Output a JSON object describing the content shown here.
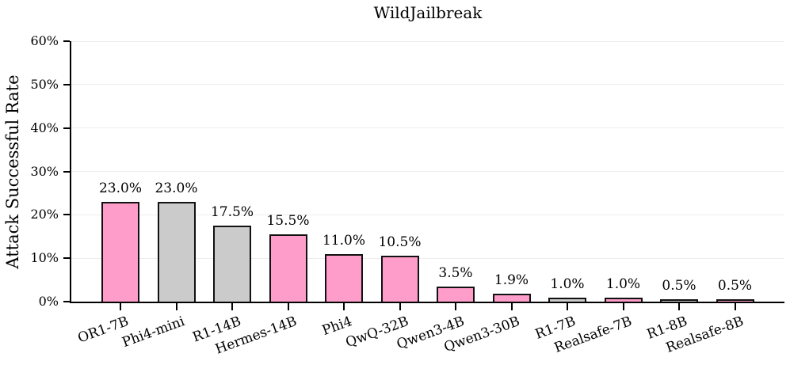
{
  "chart_data": {
    "type": "bar",
    "title": "WildJailbreak",
    "xlabel": "",
    "ylabel": "Attack Successful Rate",
    "ylim": [
      0,
      60
    ],
    "ytick_step": 10,
    "ytick_labels": [
      "0%",
      "10%",
      "20%",
      "30%",
      "40%",
      "50%",
      "60%"
    ],
    "grid": true,
    "legend": "none",
    "categories": [
      "OR1-7B",
      "Phi4-mini",
      "R1-14B",
      "Hermes-14B",
      "Phi4",
      "QwQ-32B",
      "Qwen3-4B",
      "Qwen3-30B",
      "R1-7B",
      "Realsafe-7B",
      "R1-8B",
      "Realsafe-8B"
    ],
    "values": [
      23.0,
      23.0,
      17.5,
      15.5,
      11.0,
      10.5,
      3.5,
      1.9,
      1.0,
      1.0,
      0.5,
      0.5
    ],
    "value_labels": [
      "23.0%",
      "23.0%",
      "17.5%",
      "15.5%",
      "11.0%",
      "10.5%",
      "3.5%",
      "1.9%",
      "1.0%",
      "1.0%",
      "0.5%",
      "0.5%"
    ],
    "bar_color_keys": [
      "pink",
      "gray",
      "gray",
      "pink",
      "pink",
      "pink",
      "pink",
      "pink",
      "gray",
      "pink",
      "gray",
      "pink"
    ],
    "colors": {
      "pink": "#ff9dca",
      "gray": "#cbcbcb",
      "edge": "#111111",
      "grid": "#ededed",
      "text": "#000000"
    }
  }
}
